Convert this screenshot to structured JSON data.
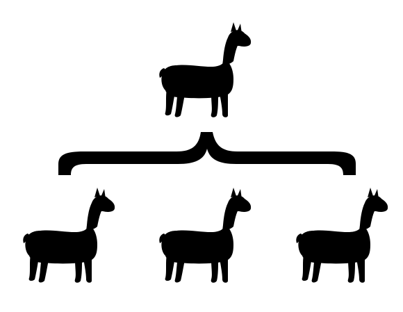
{
  "diagram": {
    "structure": "tree",
    "shape": "llama-silhouette",
    "fill_color": "#000000",
    "background_color": "#ffffff",
    "connector": "curly-brace",
    "root": {
      "icon": "llama-icon"
    },
    "children": [
      {
        "icon": "llama-icon"
      },
      {
        "icon": "llama-icon"
      },
      {
        "icon": "llama-icon"
      }
    ]
  }
}
